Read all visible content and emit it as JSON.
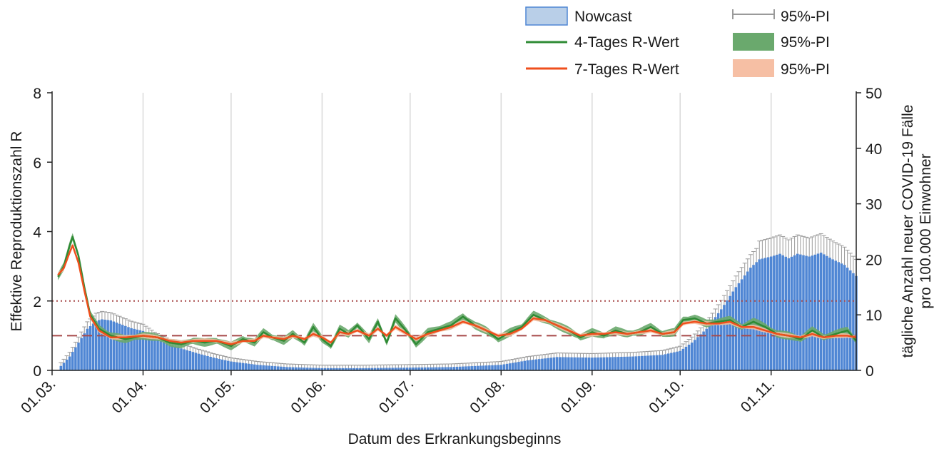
{
  "chart_data": {
    "type": "bar",
    "xlabel": "Datum des Erkrankungsbeginns",
    "ylabel_left": "Effektive Reproduktionszahl R",
    "ylabel_right_line1": "tägliche Anzahl neuer COVID-19 Fälle",
    "ylabel_right_line2": "pro 100.000 Einwohner",
    "ylim_left": [
      0,
      8
    ],
    "ylim_right": [
      0,
      50
    ],
    "yticks_left": [
      "0",
      "2",
      "4",
      "6",
      "8"
    ],
    "yticks_right": [
      "0",
      "10",
      "20",
      "30",
      "40",
      "50"
    ],
    "xticks": [
      "01.03.",
      "01.04.",
      "01.05.",
      "01.06.",
      "01.07.",
      "01.08.",
      "01.09.",
      "01.10.",
      "01.11."
    ],
    "x_start": "2020-03-01",
    "x_end": "2020-11-30",
    "grid": "vertical lines at each month start",
    "reference_lines": [
      {
        "value": 1,
        "style": "dashed",
        "color": "#a84a4a"
      },
      {
        "value": 2,
        "style": "dotted",
        "color": "#a84a4a"
      }
    ],
    "legend": {
      "position": "top-right",
      "entries": [
        "Nowcast",
        "4-Tages R-Wert",
        "7-Tages R-Wert",
        "95%-PI",
        "95%-PI",
        "95%-PI"
      ]
    },
    "colors": {
      "nowcast": "#4f86d4",
      "nowcast_legend": "#b9cfe8",
      "pi_bar": "#9a9a9a",
      "r4": "#2e8b34",
      "r4_band": "#6aa96d",
      "r7": "#ef4f1c",
      "r7_band": "#f6bfa4",
      "ref": "#a84a4a"
    },
    "series": [
      {
        "name": "Nowcast",
        "axis": "right",
        "points": [
          [
            "2020-03-04",
            0.8
          ],
          [
            "2020-03-07",
            2.5
          ],
          [
            "2020-03-10",
            5.0
          ],
          [
            "2020-03-13",
            7.5
          ],
          [
            "2020-03-16",
            8.9
          ],
          [
            "2020-03-18",
            9.2
          ],
          [
            "2020-03-21",
            9.0
          ],
          [
            "2020-03-25",
            8.2
          ],
          [
            "2020-03-28",
            7.6
          ],
          [
            "2020-04-01",
            7.1
          ],
          [
            "2020-04-05",
            5.8
          ],
          [
            "2020-04-10",
            4.6
          ],
          [
            "2020-04-15",
            3.8
          ],
          [
            "2020-04-20",
            3.0
          ],
          [
            "2020-04-25",
            2.3
          ],
          [
            "2020-05-01",
            1.6
          ],
          [
            "2020-05-10",
            1.0
          ],
          [
            "2020-05-20",
            0.6
          ],
          [
            "2020-06-01",
            0.4
          ],
          [
            "2020-06-15",
            0.4
          ],
          [
            "2020-07-01",
            0.5
          ],
          [
            "2020-07-15",
            0.6
          ],
          [
            "2020-08-01",
            1.0
          ],
          [
            "2020-08-10",
            1.8
          ],
          [
            "2020-08-20",
            2.4
          ],
          [
            "2020-09-01",
            2.3
          ],
          [
            "2020-09-15",
            2.5
          ],
          [
            "2020-09-25",
            2.8
          ],
          [
            "2020-10-01",
            3.5
          ],
          [
            "2020-10-05",
            5.0
          ],
          [
            "2020-10-10",
            7.5
          ],
          [
            "2020-10-15",
            11.0
          ],
          [
            "2020-10-20",
            15.0
          ],
          [
            "2020-10-25",
            18.5
          ],
          [
            "2020-10-28",
            20.0
          ],
          [
            "2020-11-01",
            20.5
          ],
          [
            "2020-11-04",
            21.0
          ],
          [
            "2020-11-07",
            20.2
          ],
          [
            "2020-11-10",
            21.0
          ],
          [
            "2020-11-14",
            20.5
          ],
          [
            "2020-11-18",
            21.2
          ],
          [
            "2020-11-22",
            20.0
          ],
          [
            "2020-11-26",
            19.0
          ],
          [
            "2020-11-30",
            17.0
          ]
        ]
      },
      {
        "name": "4-Tages R-Wert",
        "axis": "left",
        "points": [
          [
            "2020-03-03",
            2.7
          ],
          [
            "2020-03-05",
            3.0
          ],
          [
            "2020-03-07",
            3.6
          ],
          [
            "2020-03-08",
            3.85
          ],
          [
            "2020-03-10",
            3.3
          ],
          [
            "2020-03-12",
            2.4
          ],
          [
            "2020-03-14",
            1.6
          ],
          [
            "2020-03-17",
            1.2
          ],
          [
            "2020-03-21",
            1.0
          ],
          [
            "2020-03-26",
            0.9
          ],
          [
            "2020-04-01",
            1.0
          ],
          [
            "2020-04-06",
            0.95
          ],
          [
            "2020-04-10",
            0.8
          ],
          [
            "2020-04-14",
            0.75
          ],
          [
            "2020-04-18",
            0.85
          ],
          [
            "2020-04-22",
            0.8
          ],
          [
            "2020-04-26",
            0.85
          ],
          [
            "2020-05-01",
            0.7
          ],
          [
            "2020-05-05",
            0.9
          ],
          [
            "2020-05-09",
            0.8
          ],
          [
            "2020-05-12",
            1.1
          ],
          [
            "2020-05-15",
            0.95
          ],
          [
            "2020-05-19",
            0.85
          ],
          [
            "2020-05-22",
            1.05
          ],
          [
            "2020-05-26",
            0.8
          ],
          [
            "2020-05-29",
            1.25
          ],
          [
            "2020-06-01",
            0.9
          ],
          [
            "2020-06-04",
            0.7
          ],
          [
            "2020-06-07",
            1.2
          ],
          [
            "2020-06-10",
            1.05
          ],
          [
            "2020-06-13",
            1.3
          ],
          [
            "2020-06-17",
            0.9
          ],
          [
            "2020-06-20",
            1.4
          ],
          [
            "2020-06-23",
            0.8
          ],
          [
            "2020-06-26",
            1.5
          ],
          [
            "2020-06-30",
            1.1
          ],
          [
            "2020-07-03",
            0.75
          ],
          [
            "2020-07-07",
            1.1
          ],
          [
            "2020-07-11",
            1.2
          ],
          [
            "2020-07-15",
            1.3
          ],
          [
            "2020-07-19",
            1.55
          ],
          [
            "2020-07-23",
            1.3
          ],
          [
            "2020-07-27",
            1.15
          ],
          [
            "2020-07-31",
            0.9
          ],
          [
            "2020-08-04",
            1.1
          ],
          [
            "2020-08-08",
            1.25
          ],
          [
            "2020-08-12",
            1.6
          ],
          [
            "2020-08-16",
            1.45
          ],
          [
            "2020-08-20",
            1.3
          ],
          [
            "2020-08-24",
            1.15
          ],
          [
            "2020-08-28",
            0.95
          ],
          [
            "2020-09-01",
            1.1
          ],
          [
            "2020-09-05",
            1.0
          ],
          [
            "2020-09-09",
            1.15
          ],
          [
            "2020-09-13",
            1.05
          ],
          [
            "2020-09-17",
            1.1
          ],
          [
            "2020-09-21",
            1.25
          ],
          [
            "2020-09-25",
            1.05
          ],
          [
            "2020-09-29",
            1.1
          ],
          [
            "2020-10-02",
            1.45
          ],
          [
            "2020-10-06",
            1.5
          ],
          [
            "2020-10-10",
            1.35
          ],
          [
            "2020-10-14",
            1.4
          ],
          [
            "2020-10-18",
            1.45
          ],
          [
            "2020-10-22",
            1.25
          ],
          [
            "2020-10-26",
            1.4
          ],
          [
            "2020-10-30",
            1.25
          ],
          [
            "2020-11-03",
            1.05
          ],
          [
            "2020-11-07",
            1.0
          ],
          [
            "2020-11-11",
            0.9
          ],
          [
            "2020-11-15",
            1.15
          ],
          [
            "2020-11-19",
            0.95
          ],
          [
            "2020-11-23",
            1.05
          ],
          [
            "2020-11-27",
            1.15
          ],
          [
            "2020-11-30",
            0.85
          ]
        ]
      },
      {
        "name": "7-Tages R-Wert",
        "axis": "left",
        "points": [
          [
            "2020-03-03",
            2.75
          ],
          [
            "2020-03-05",
            2.95
          ],
          [
            "2020-03-07",
            3.4
          ],
          [
            "2020-03-08",
            3.6
          ],
          [
            "2020-03-10",
            3.1
          ],
          [
            "2020-03-12",
            2.3
          ],
          [
            "2020-03-14",
            1.55
          ],
          [
            "2020-03-17",
            1.15
          ],
          [
            "2020-03-21",
            0.95
          ],
          [
            "2020-03-26",
            0.95
          ],
          [
            "2020-04-01",
            1.0
          ],
          [
            "2020-04-06",
            0.95
          ],
          [
            "2020-04-10",
            0.85
          ],
          [
            "2020-04-14",
            0.8
          ],
          [
            "2020-04-18",
            0.85
          ],
          [
            "2020-04-22",
            0.85
          ],
          [
            "2020-04-26",
            0.85
          ],
          [
            "2020-05-01",
            0.75
          ],
          [
            "2020-05-05",
            0.85
          ],
          [
            "2020-05-09",
            0.85
          ],
          [
            "2020-05-12",
            1.0
          ],
          [
            "2020-05-15",
            0.95
          ],
          [
            "2020-05-19",
            0.9
          ],
          [
            "2020-05-22",
            1.0
          ],
          [
            "2020-05-26",
            0.9
          ],
          [
            "2020-05-29",
            1.05
          ],
          [
            "2020-06-01",
            0.95
          ],
          [
            "2020-06-04",
            0.8
          ],
          [
            "2020-06-07",
            1.1
          ],
          [
            "2020-06-10",
            1.05
          ],
          [
            "2020-06-13",
            1.15
          ],
          [
            "2020-06-17",
            1.0
          ],
          [
            "2020-06-20",
            1.2
          ],
          [
            "2020-06-23",
            1.0
          ],
          [
            "2020-06-26",
            1.25
          ],
          [
            "2020-06-30",
            1.05
          ],
          [
            "2020-07-03",
            0.9
          ],
          [
            "2020-07-07",
            1.05
          ],
          [
            "2020-07-11",
            1.15
          ],
          [
            "2020-07-15",
            1.25
          ],
          [
            "2020-07-19",
            1.4
          ],
          [
            "2020-07-23",
            1.3
          ],
          [
            "2020-07-27",
            1.15
          ],
          [
            "2020-07-31",
            1.0
          ],
          [
            "2020-08-04",
            1.05
          ],
          [
            "2020-08-08",
            1.2
          ],
          [
            "2020-08-12",
            1.5
          ],
          [
            "2020-08-16",
            1.45
          ],
          [
            "2020-08-20",
            1.3
          ],
          [
            "2020-08-24",
            1.15
          ],
          [
            "2020-08-28",
            1.0
          ],
          [
            "2020-09-01",
            1.05
          ],
          [
            "2020-09-05",
            1.05
          ],
          [
            "2020-09-09",
            1.1
          ],
          [
            "2020-09-13",
            1.05
          ],
          [
            "2020-09-17",
            1.1
          ],
          [
            "2020-09-21",
            1.15
          ],
          [
            "2020-09-25",
            1.05
          ],
          [
            "2020-09-29",
            1.1
          ],
          [
            "2020-10-02",
            1.35
          ],
          [
            "2020-10-06",
            1.4
          ],
          [
            "2020-10-10",
            1.35
          ],
          [
            "2020-10-14",
            1.35
          ],
          [
            "2020-10-18",
            1.4
          ],
          [
            "2020-10-22",
            1.25
          ],
          [
            "2020-10-26",
            1.25
          ],
          [
            "2020-10-30",
            1.15
          ],
          [
            "2020-11-03",
            1.05
          ],
          [
            "2020-11-07",
            1.0
          ],
          [
            "2020-11-11",
            0.95
          ],
          [
            "2020-11-15",
            1.05
          ],
          [
            "2020-11-19",
            0.95
          ],
          [
            "2020-11-23",
            1.0
          ],
          [
            "2020-11-27",
            1.0
          ],
          [
            "2020-11-30",
            0.95
          ]
        ]
      }
    ]
  }
}
